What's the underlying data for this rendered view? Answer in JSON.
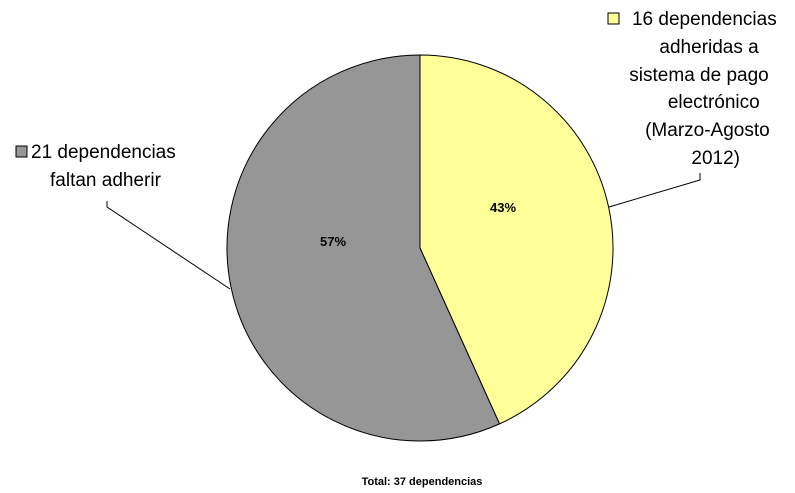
{
  "chart_data": {
    "type": "pie",
    "slices": [
      {
        "label_lines": [
          "16 dependencias",
          "adheridas a",
          "sistema de pago",
          "electrónico",
          "(Marzo-Agosto",
          "2012)"
        ],
        "value": 16,
        "percent_label": "43%",
        "color": "#ffff99"
      },
      {
        "label_lines": [
          "21 dependencias",
          "faltan adherir"
        ],
        "value": 21,
        "percent_label": "57%",
        "color": "#969696"
      }
    ],
    "footer": "Total: 37 dependencias"
  }
}
